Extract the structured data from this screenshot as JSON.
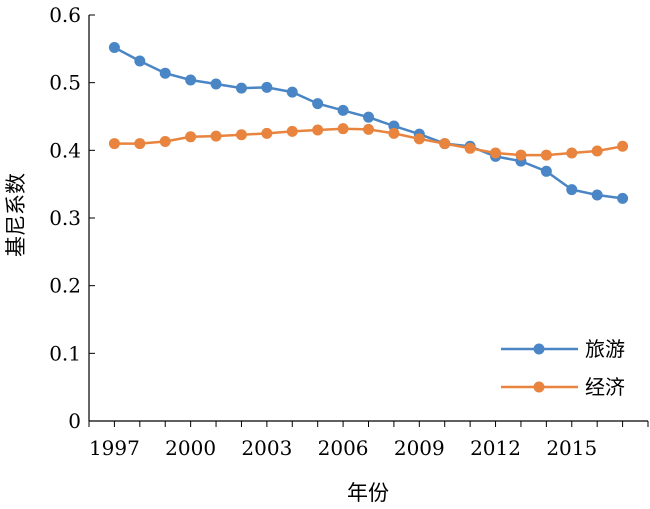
{
  "chart_data": {
    "type": "line",
    "xlabel": "年份",
    "ylabel": "基尼系数",
    "xlim": [
      1996,
      2018
    ],
    "ylim": [
      0,
      0.6
    ],
    "x_ticks": [
      1997,
      2000,
      2003,
      2006,
      2009,
      2012,
      2015
    ],
    "x_tick_labels": [
      "1997",
      "2000",
      "2003",
      "2006",
      "2009",
      "2012",
      "2015"
    ],
    "y_ticks": [
      0,
      0.1,
      0.2,
      0.3,
      0.4,
      0.5,
      0.6
    ],
    "y_tick_labels": [
      "0",
      "0.1",
      "0.2",
      "0.3",
      "0.4",
      "0.5",
      "0.6"
    ],
    "grid": false,
    "legend_position": "bottom-right",
    "x": [
      1997,
      1998,
      1999,
      2000,
      2001,
      2002,
      2003,
      2004,
      2005,
      2006,
      2007,
      2008,
      2009,
      2010,
      2011,
      2012,
      2013,
      2014,
      2015,
      2016,
      2017
    ],
    "series": [
      {
        "name": "旅游",
        "color": "#4a86c5",
        "values": [
          0.552,
          0.532,
          0.514,
          0.504,
          0.498,
          0.492,
          0.493,
          0.486,
          0.469,
          0.459,
          0.449,
          0.436,
          0.424,
          0.41,
          0.406,
          0.391,
          0.384,
          0.369,
          0.342,
          0.334,
          0.329
        ]
      },
      {
        "name": "经济",
        "color": "#e8843e",
        "values": [
          0.41,
          0.41,
          0.413,
          0.42,
          0.421,
          0.423,
          0.425,
          0.428,
          0.43,
          0.432,
          0.431,
          0.425,
          0.417,
          0.41,
          0.403,
          0.396,
          0.393,
          0.393,
          0.396,
          0.399,
          0.406
        ]
      }
    ]
  }
}
